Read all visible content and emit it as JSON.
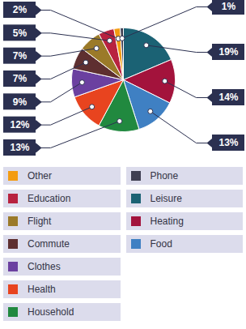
{
  "chart_data": {
    "type": "pie",
    "categories": [
      "Leisure",
      "Heating",
      "Food",
      "Household",
      "Health",
      "Clothes",
      "Commute",
      "Flight",
      "Education",
      "Other",
      "Phone"
    ],
    "values": [
      19,
      14,
      13,
      13,
      12,
      9,
      7,
      7,
      5,
      2,
      1
    ],
    "value_labels": [
      "19%",
      "14%",
      "13%",
      "13%",
      "12%",
      "9%",
      "7%",
      "7%",
      "5%",
      "2%",
      "1%"
    ],
    "colors": [
      "#1b6274",
      "#a3133c",
      "#3f80c3",
      "#21893f",
      "#e8441f",
      "#6b40a0",
      "#5e2f30",
      "#9b7a29",
      "#b8223f",
      "#f39c12",
      "#3f3f52"
    ],
    "data_labels": true,
    "legend": "bottom"
  }
}
